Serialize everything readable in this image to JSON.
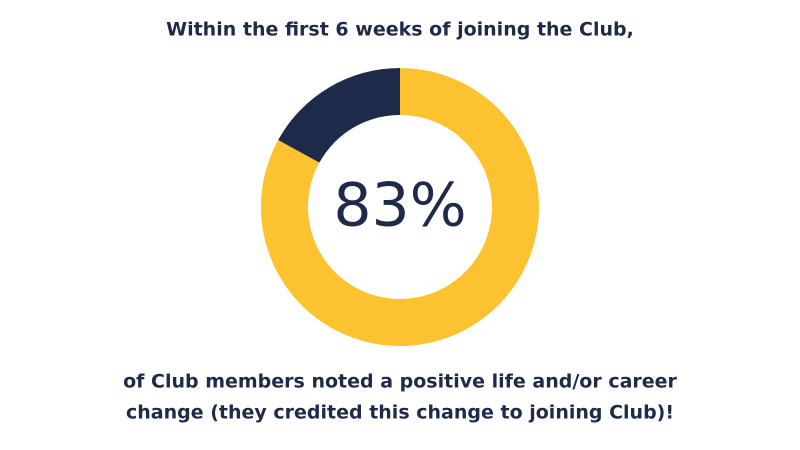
{
  "chart_data": {
    "type": "donut",
    "title": "Within the first 6 weeks of joining the Club,",
    "caption": [
      "of Club members noted a positive life and/or career",
      "change (they credited this change to joining Club)!"
    ],
    "values": [
      83,
      17
    ],
    "value_labels": [
      "83%",
      null
    ],
    "colors": [
      "#fcc230",
      "#1e2a4a"
    ]
  }
}
